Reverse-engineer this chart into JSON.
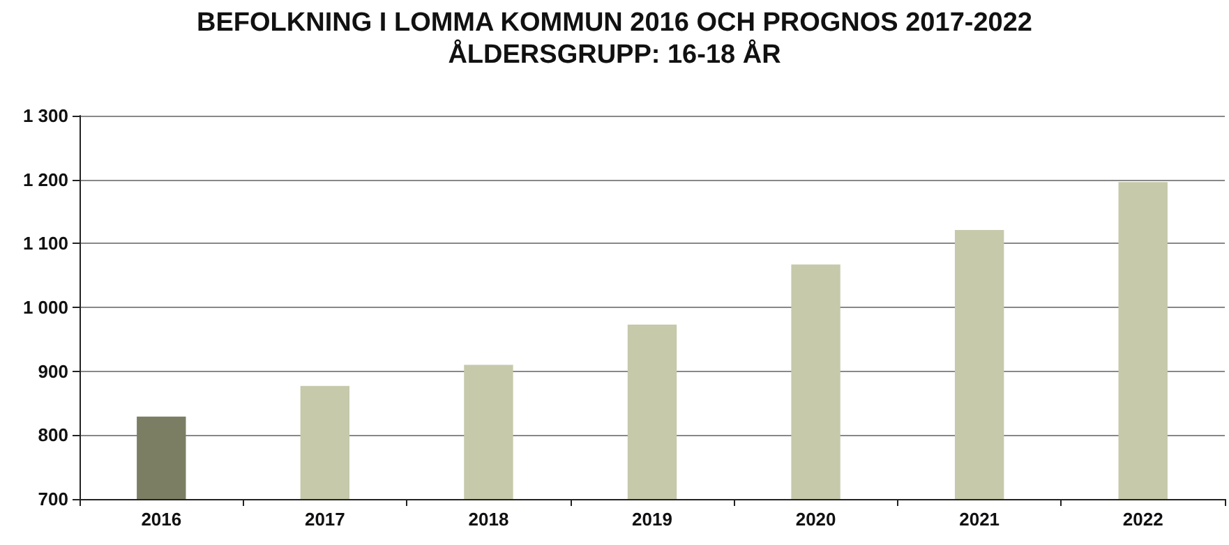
{
  "chart_data": {
    "type": "bar",
    "title": "BEFOLKNING I LOMMA KOMMUN 2016 OCH PROGNOS 2017-2022",
    "subtitle": "ÅLDERSGRUPP: 16-18 ÅR",
    "categories": [
      "2016",
      "2017",
      "2018",
      "2019",
      "2020",
      "2021",
      "2022"
    ],
    "values": [
      829,
      877,
      910,
      973,
      1067,
      1121,
      1196
    ],
    "colors": [
      "#7b7e63",
      "#c6c9aa",
      "#c6c9aa",
      "#c6c9aa",
      "#c6c9aa",
      "#c6c9aa",
      "#c6c9aa"
    ],
    "ylim": [
      700,
      1300
    ],
    "yticks": [
      700,
      800,
      900,
      {
        "value": 1000,
        "label": "1 000"
      },
      {
        "value": 1100,
        "label": "1 100"
      },
      {
        "value": 1200,
        "label": "1 200"
      },
      {
        "value": 1300,
        "label": "1 300"
      }
    ],
    "grid": "y"
  }
}
